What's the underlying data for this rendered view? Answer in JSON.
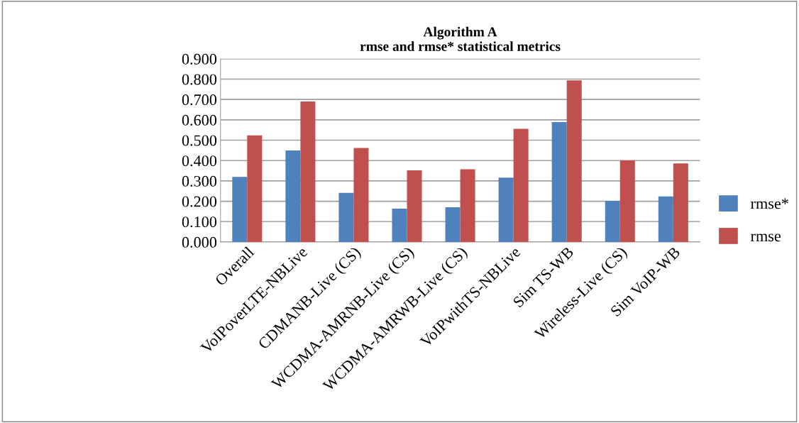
{
  "chart_data": {
    "type": "bar",
    "title": "Algorithm A\nrmse and rmse* statistical metrics",
    "categories": [
      "Overall",
      "VoIPoverLTE-NBLive",
      "CDMANB-Live (CS)",
      "WCDMA-AMRNB-Live (CS)",
      "WCDMA-AMRWB-Live (CS)",
      "VoIPwithTS-NBLive",
      "Sim TS-WB",
      "Wireless-Live (CS)",
      "Sim VoIP-WB"
    ],
    "series": [
      {
        "name": "rmse*",
        "color": "#4f81bd",
        "values": [
          0.32,
          0.45,
          0.241,
          0.164,
          0.171,
          0.316,
          0.589,
          0.202,
          0.224
        ]
      },
      {
        "name": "rmse",
        "color": "#c0504d",
        "values": [
          0.524,
          0.69,
          0.462,
          0.352,
          0.357,
          0.556,
          0.794,
          0.401,
          0.386
        ]
      }
    ],
    "ylim": [
      0,
      0.9
    ],
    "yticks": [
      {
        "value": 0,
        "label": "0.000"
      },
      {
        "value": 0.1,
        "label": "0.100"
      },
      {
        "value": 0.2,
        "label": "0.200"
      },
      {
        "value": 0.3,
        "label": "0.300"
      },
      {
        "value": 0.4,
        "label": "0.400"
      },
      {
        "value": 0.5,
        "label": "0.500"
      },
      {
        "value": 0.6,
        "label": "0.600"
      },
      {
        "value": 0.7,
        "label": "0.700"
      },
      {
        "value": 0.8,
        "label": "0.800"
      },
      {
        "value": 0.9,
        "label": "0.900"
      }
    ],
    "grid": "y",
    "legend": "right"
  }
}
